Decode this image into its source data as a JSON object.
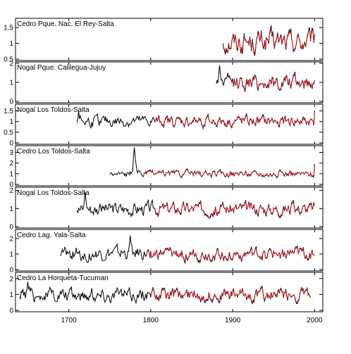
{
  "chart_data": {
    "type": "line",
    "x_axis": {
      "range": [
        1635,
        2010
      ],
      "ticks": [
        1700,
        1800,
        1900,
        2000
      ],
      "tick_labels": [
        "1700",
        "1800",
        "1900",
        "2000"
      ]
    },
    "series_colors": {
      "chronology": "#000000",
      "fitted": "#c0141c"
    },
    "panels": [
      {
        "title": "Cedro Pque. Nac. El Rey-Salta",
        "ylim": [
          0.5,
          1.75
        ],
        "yticks": [
          0.5,
          1,
          1.5
        ],
        "ytick_labels": [
          "0.5",
          "1",
          "1.5"
        ],
        "black_start": 1888,
        "red_start": 1890,
        "end": 2000,
        "mean": 1.05,
        "amplitude": 0.3,
        "early_spike": {
          "year": 0,
          "value": 0
        },
        "final_value": 1.3
      },
      {
        "title": "Nogal Pque. Calilegua-Jujuy",
        "ylim": [
          0,
          2
        ],
        "yticks": [
          0,
          1,
          2
        ],
        "ytick_labels": [
          "0",
          "1",
          "2"
        ],
        "black_start": 1880,
        "red_start": 1895,
        "end": 2000,
        "mean": 1.0,
        "amplitude": 0.35,
        "early_spike": {
          "year": 1884,
          "value": 1.9
        },
        "final_value": 1.1
      },
      {
        "title": "Nogal Los Toldos-Salta",
        "ylim": [
          0,
          1.75
        ],
        "yticks": [
          0,
          0.5,
          1,
          1.5
        ],
        "ytick_labels": [
          "0",
          "0.5",
          "1",
          "1.5"
        ],
        "black_start": 1710,
        "red_start": 1805,
        "end": 2000,
        "mean": 1.0,
        "amplitude": 0.22,
        "early_spike": {
          "year": 1712,
          "value": 1.5
        },
        "final_value": 1.5
      },
      {
        "title": "Cedro Los Toldos-Salta",
        "ylim": [
          0,
          3.5
        ],
        "yticks": [
          0,
          1,
          2,
          3
        ],
        "ytick_labels": [
          "0",
          "1",
          "2",
          "3"
        ],
        "black_start": 1750,
        "red_start": 1790,
        "end": 2000,
        "mean": 1.0,
        "amplitude": 0.25,
        "early_spike": {
          "year": 1780,
          "value": 3.5
        },
        "final_value": 1.9
      },
      {
        "title": "Nogal Los Toldos-Salta",
        "ylim": [
          0,
          2.1
        ],
        "yticks": [
          0,
          1,
          2
        ],
        "ytick_labels": [
          "0",
          "1",
          "2"
        ],
        "black_start": 1710,
        "red_start": 1805,
        "end": 2000,
        "mean": 1.0,
        "amplitude": 0.3,
        "early_spike": {
          "year": 1720,
          "value": 1.9
        },
        "final_value": 1.2
      },
      {
        "title": "Cedro Lag. Yala-Salta",
        "ylim": [
          0,
          2.5
        ],
        "yticks": [
          0,
          1,
          2
        ],
        "ytick_labels": [
          "0",
          "1",
          "2"
        ],
        "black_start": 1690,
        "red_start": 1795,
        "end": 2000,
        "mean": 1.0,
        "amplitude": 0.35,
        "early_spike": {
          "year": 1775,
          "value": 2.2
        },
        "final_value": 0.9
      },
      {
        "title": "Cedro La Horqueta-Tucuman",
        "ylim": [
          0,
          2.3
        ],
        "yticks": [
          0,
          1,
          2
        ],
        "ytick_labels": [
          "0",
          "1",
          "2"
        ],
        "black_start": 1640,
        "red_start": 1800,
        "end": 1995,
        "mean": 1.0,
        "amplitude": 0.35,
        "early_spike": {
          "year": 1650,
          "value": 1.8
        },
        "final_value": 0.8
      }
    ]
  }
}
